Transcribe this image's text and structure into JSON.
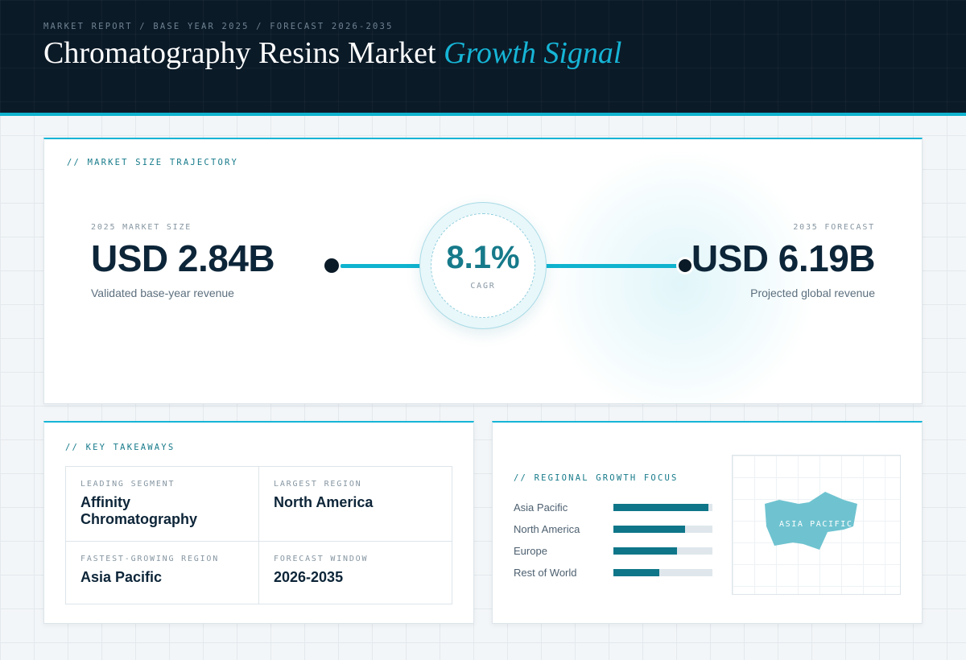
{
  "header": {
    "breadcrumb": "MARKET REPORT / BASE YEAR 2025 / FORECAST 2026-2035",
    "title_main": "Chromatography Resins Market",
    "title_accent": "Growth Signal"
  },
  "trajectory": {
    "section_label": "// MARKET SIZE TRAJECTORY",
    "start": {
      "label": "2025 MARKET SIZE",
      "value": "USD 2.84B",
      "caption": "Validated base-year revenue"
    },
    "end": {
      "label": "2035 FORECAST",
      "value": "USD 6.19B",
      "caption": "Projected global revenue"
    },
    "cagr": {
      "value": "8.1%",
      "label": "CAGR"
    }
  },
  "takeaways": {
    "section_label": "// KEY TAKEAWAYS",
    "items": [
      {
        "label": "LEADING SEGMENT",
        "value": "Affinity Chromatography"
      },
      {
        "label": "LARGEST REGION",
        "value": "North America"
      },
      {
        "label": "FASTEST-GROWING REGION",
        "value": "Asia Pacific"
      },
      {
        "label": "FORECAST WINDOW",
        "value": "2026-2035"
      }
    ]
  },
  "regional": {
    "section_label": "// REGIONAL GROWTH FOCUS",
    "regions": [
      {
        "name": "Asia Pacific",
        "level": 0.96
      },
      {
        "name": "North America",
        "level": 0.72
      },
      {
        "name": "Europe",
        "level": 0.64
      },
      {
        "name": "Rest of World",
        "level": 0.46
      }
    ],
    "map_label": "ASIA PACIFIC"
  },
  "colors": {
    "accent": "#16b5d6",
    "bar_fill": "#0f7689",
    "header_bg": "#0b1a27",
    "map_shape": "#6fc3d0"
  }
}
